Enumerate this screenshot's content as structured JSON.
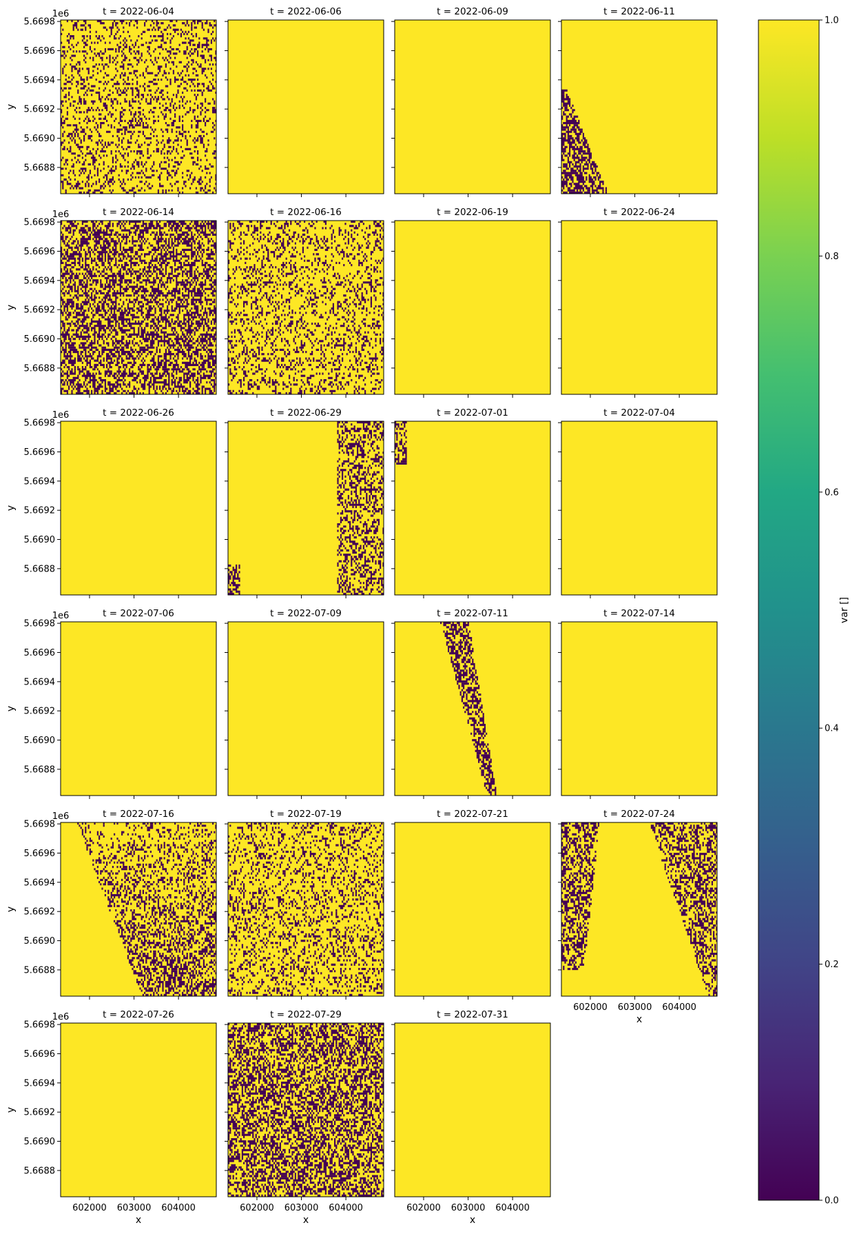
{
  "chart_data": {
    "type": "heatmap",
    "layout": "facet-grid",
    "colormap": "viridis",
    "dark_color": "#440154",
    "bright_color": "#fde725",
    "panels": [
      {
        "title": "t = 2022-06-04",
        "pattern": "dense_speckle"
      },
      {
        "title": "t = 2022-06-06",
        "pattern": "uniform"
      },
      {
        "title": "t = 2022-06-09",
        "pattern": "uniform"
      },
      {
        "title": "t = 2022-06-11",
        "pattern": "left_strip"
      },
      {
        "title": "t = 2022-06-14",
        "pattern": "heavy_speckle"
      },
      {
        "title": "t = 2022-06-16",
        "pattern": "dense_speckle"
      },
      {
        "title": "t = 2022-06-19",
        "pattern": "uniform"
      },
      {
        "title": "t = 2022-06-24",
        "pattern": "uniform"
      },
      {
        "title": "t = 2022-06-26",
        "pattern": "uniform"
      },
      {
        "title": "t = 2022-06-29",
        "pattern": "right_band"
      },
      {
        "title": "t = 2022-07-01",
        "pattern": "top_left_corner"
      },
      {
        "title": "t = 2022-07-04",
        "pattern": "uniform"
      },
      {
        "title": "t = 2022-07-06",
        "pattern": "uniform"
      },
      {
        "title": "t = 2022-07-09",
        "pattern": "uniform"
      },
      {
        "title": "t = 2022-07-11",
        "pattern": "diagonal_strip"
      },
      {
        "title": "t = 2022-07-14",
        "pattern": "uniform"
      },
      {
        "title": "t = 2022-07-16",
        "pattern": "diagonal_heavy"
      },
      {
        "title": "t = 2022-07-19",
        "pattern": "dense_speckle"
      },
      {
        "title": "t = 2022-07-21",
        "pattern": "uniform"
      },
      {
        "title": "t = 2022-07-24",
        "pattern": "two_strips"
      },
      {
        "title": "t = 2022-07-26",
        "pattern": "uniform"
      },
      {
        "title": "t = 2022-07-29",
        "pattern": "heavy_speckle"
      },
      {
        "title": "t = 2022-07-31",
        "pattern": "uniform"
      }
    ],
    "xlabel": "x",
    "ylabel": "y",
    "y_offset_label": "1e6",
    "x_ticks": [
      602000,
      603000,
      604000
    ],
    "x_tick_labels": [
      "602000",
      "603000",
      "604000"
    ],
    "y_ticks": [
      5.6698,
      5.6696,
      5.6694,
      5.6692,
      5.669,
      5.6688
    ],
    "y_tick_labels": [
      "5.6698",
      "5.6696",
      "5.6694",
      "5.6692",
      "5.6690",
      "5.6688"
    ],
    "xlim": [
      601350,
      604850
    ],
    "ylim": [
      5.66862,
      5.66981
    ],
    "colorbar": {
      "label": "var []",
      "ticks": [
        0.0,
        0.2,
        0.4,
        0.6,
        0.8,
        1.0
      ],
      "tick_labels": [
        "0.0",
        "0.2",
        "0.4",
        "0.6",
        "0.8",
        "1.0"
      ],
      "range": [
        0,
        1
      ]
    }
  }
}
